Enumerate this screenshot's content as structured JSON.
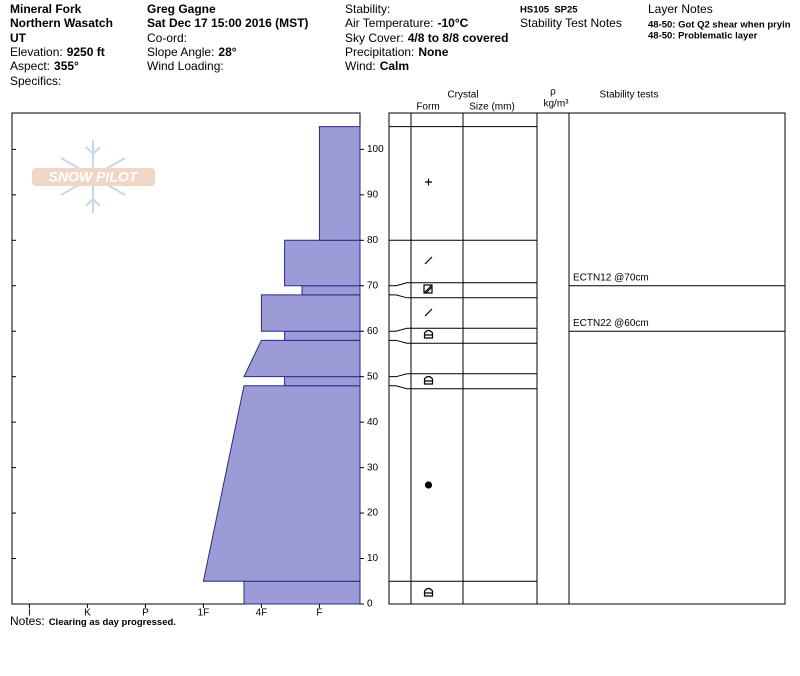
{
  "header": {
    "site": {
      "name": "Mineral Fork",
      "range": "Northern Wasatch",
      "state": "UT",
      "elevation_label": "Elevation:",
      "elevation": "9250 ft",
      "aspect_label": "Aspect:",
      "aspect": "355°",
      "specifics_label": "Specifics:"
    },
    "observer": {
      "name": "Greg Gagne",
      "date": "Sat Dec 17 15:00 2016 (MST)",
      "coord_label": "Co-ord:",
      "slope_label": "Slope Angle:",
      "slope": "28°",
      "wind_loading_label": "Wind Loading:"
    },
    "conditions": {
      "stability_label": "Stability:",
      "air_temp_label": "Air Temperature:",
      "air_temp": "-10°C",
      "sky_label": "Sky Cover:",
      "sky": "4/8 to 8/8 covered",
      "precip_label": "Precipitation:",
      "precip": "None",
      "wind_label": "Wind:",
      "wind": "Calm"
    },
    "summary": "HS105  SP25",
    "stability_notes_title": "Stability Test Notes",
    "layer_notes": {
      "title": "Layer Notes",
      "items": [
        "48-50: Got Q2 shear when pryin",
        "48-50: Problematic layer"
      ]
    }
  },
  "notes": {
    "label": "Notes:",
    "text": "Clearing as day progressed."
  },
  "watermark": "SNOW PILOT",
  "chart_data": {
    "type": "snow-profile",
    "ylim": [
      0,
      108
    ],
    "yticks": [
      0,
      10,
      20,
      30,
      40,
      50,
      60,
      70,
      80,
      90,
      100
    ],
    "xlim": [
      6.3,
      0.3
    ],
    "xticks": [
      {
        "value": 6,
        "label": "I"
      },
      {
        "value": 5,
        "label": "K"
      },
      {
        "value": 4,
        "label": "P"
      },
      {
        "value": 3,
        "label": "1F"
      },
      {
        "value": 2,
        "label": "4F"
      },
      {
        "value": 1,
        "label": "F"
      }
    ],
    "color": "#9b9bd8",
    "layers": {
      "bottom": [
        0,
        5,
        48,
        50,
        58,
        60,
        68,
        70,
        80
      ],
      "top": [
        5,
        48,
        50,
        58,
        60,
        68,
        70,
        80,
        105
      ],
      "hardness_bottom": [
        2.3,
        3,
        1.6,
        2.3,
        1.6,
        2,
        1.3,
        1.6,
        1
      ],
      "hardness_top": [
        2.3,
        2.3,
        1.6,
        2,
        1.6,
        2,
        1.3,
        1.6,
        1
      ]
    },
    "column_headers": {
      "crystal": "Crystal",
      "form": "Form",
      "size": "Size (mm)",
      "density": "ρ",
      "density_unit": "kg/m³",
      "stability": "Stability tests"
    },
    "stability_tests": {
      "labels": [
        "ECTN12 @70cm",
        "ECTN22 @60cm"
      ],
      "depths": [
        70,
        60
      ]
    }
  }
}
